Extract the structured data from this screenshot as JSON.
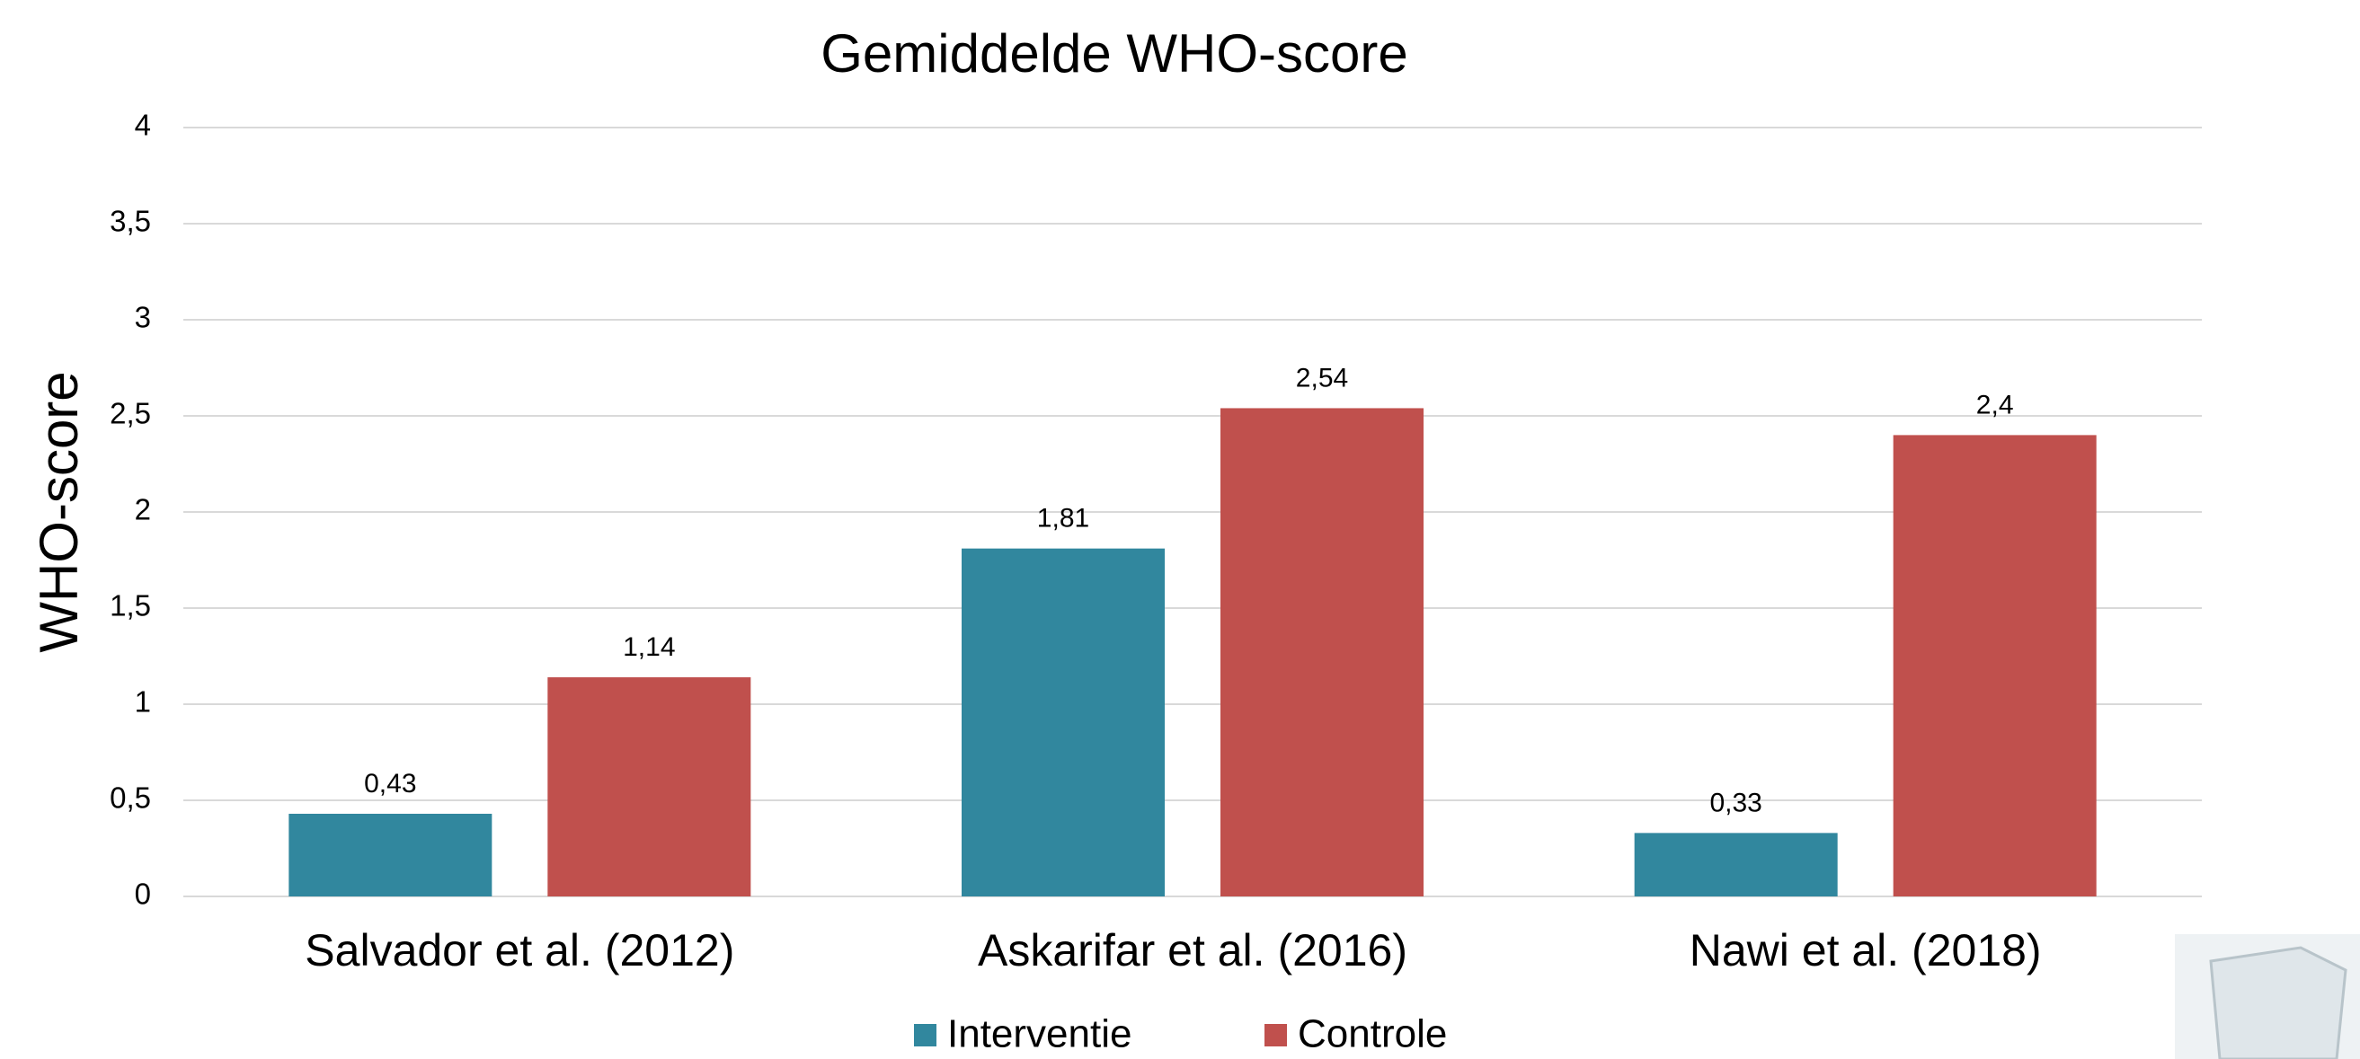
{
  "chart_data": {
    "type": "bar",
    "title": "Gemiddelde WHO-score",
    "y_label": "WHO-score",
    "categories": [
      "Salvador et al. (2012)",
      "Askarifar et al. (2016)",
      "Nawi et al. (2018)"
    ],
    "series": [
      {
        "name": "Interventie",
        "color": "#31879e",
        "values": [
          0.43,
          1.81,
          0.33
        ],
        "value_labels": [
          "0,43",
          "1,81",
          "0,33"
        ]
      },
      {
        "name": "Controle",
        "color": "#c0504d",
        "values": [
          1.14,
          2.54,
          2.4
        ],
        "value_labels": [
          "1,14",
          "2,54",
          "2,4"
        ]
      }
    ],
    "ylim": [
      0,
      4
    ],
    "yticks": [
      0,
      {
        "value": 0.5,
        "label": "0,5"
      },
      1,
      {
        "value": 1.5,
        "label": "1,5"
      },
      2,
      {
        "value": 2.5,
        "label": "2,5"
      },
      3,
      {
        "value": 3.5,
        "label": "3,5"
      },
      4
    ],
    "grid": true,
    "legend": "bottom"
  }
}
